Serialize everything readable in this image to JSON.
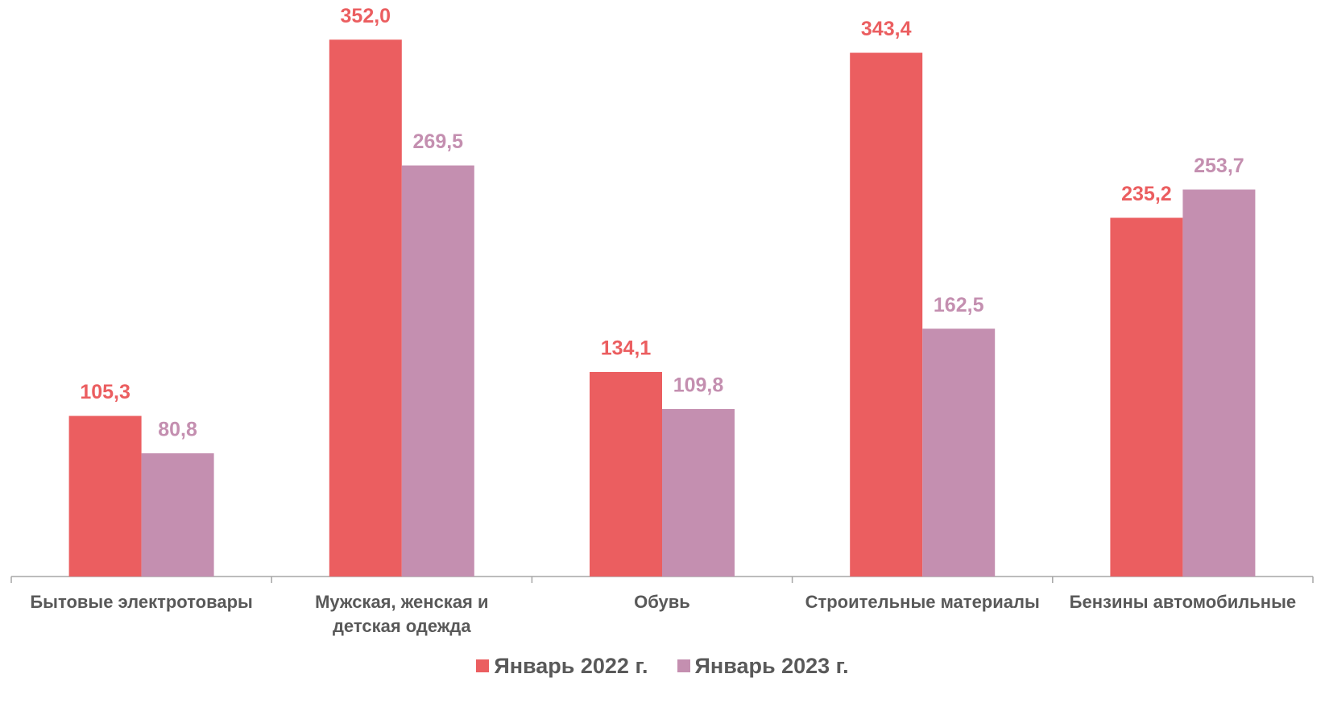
{
  "chart_data": {
    "type": "bar",
    "categories": [
      "Бытовые электротовары",
      "Мужская, женская и детская одежда",
      "Обувь",
      "Строительные материалы",
      "Бензины автомобильные"
    ],
    "series": [
      {
        "name": "Январь 2022 г.",
        "color": "#eb5e60",
        "values": [
          105.3,
          352.0,
          134.1,
          343.4,
          235.2
        ],
        "value_labels": [
          "105,3",
          "352,0",
          "134,1",
          "343,4",
          "235,2"
        ]
      },
      {
        "name": "Январь 2023 г.",
        "color": "#c48fb0",
        "values": [
          80.8,
          269.5,
          109.8,
          162.5,
          253.7
        ],
        "value_labels": [
          "80,8",
          "269,5",
          "109,8",
          "162,5",
          "253,7"
        ]
      }
    ],
    "ylim": [
      0,
      378
    ],
    "legend": "bottom"
  }
}
